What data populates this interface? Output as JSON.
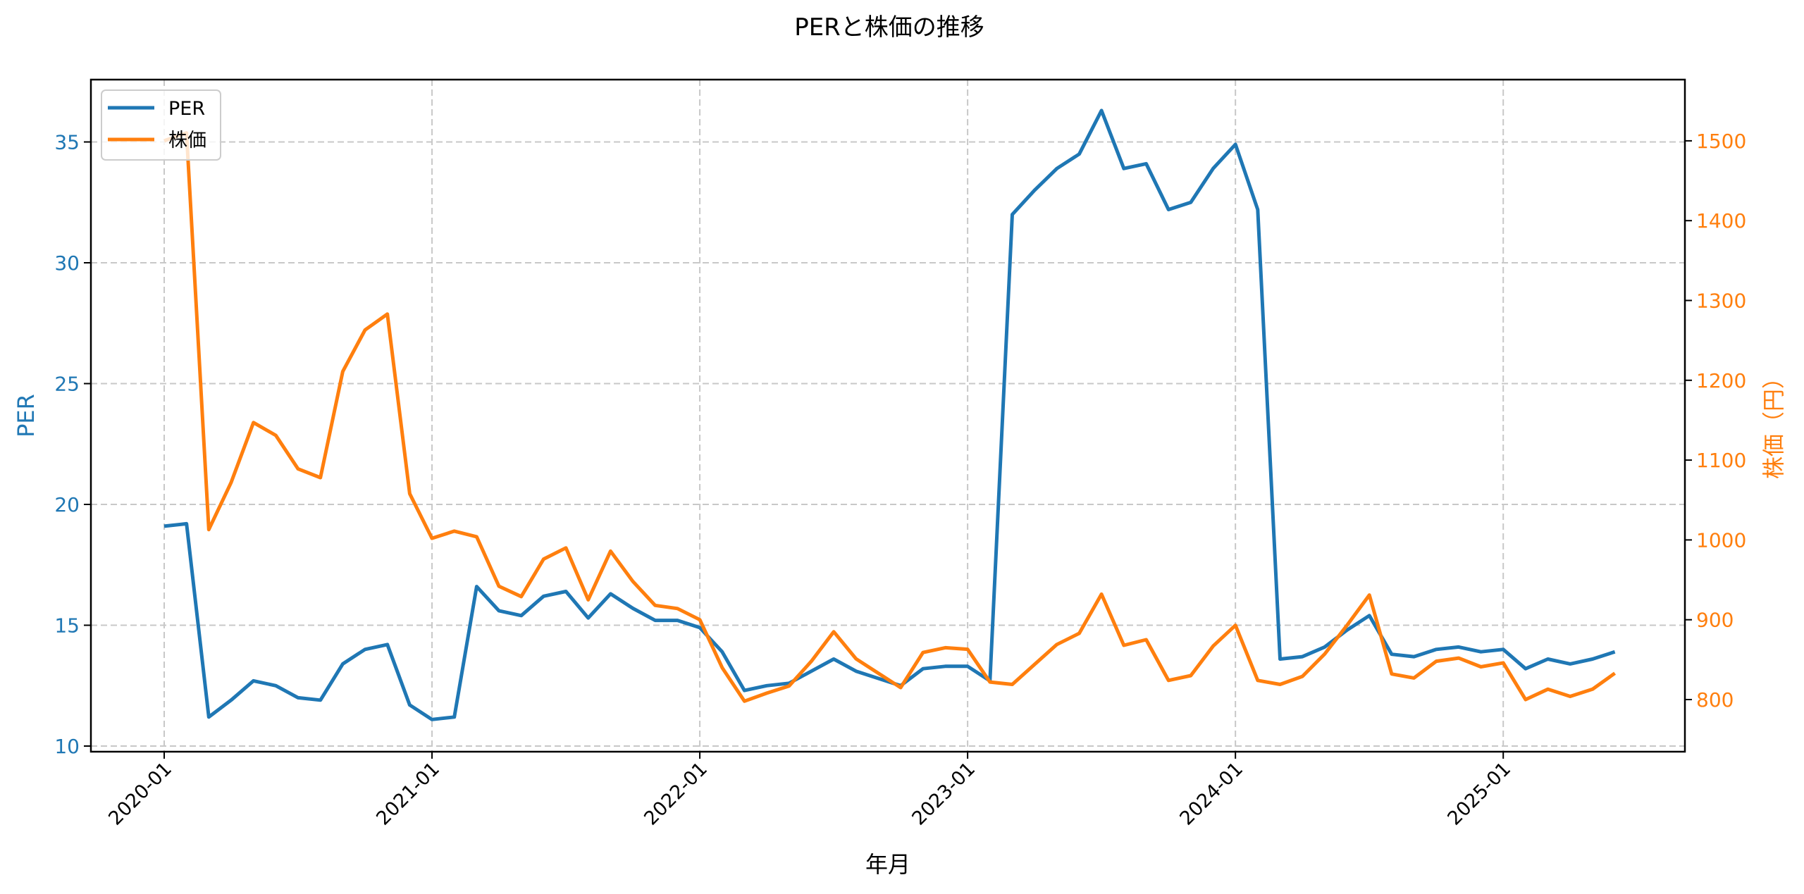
{
  "chart_data": {
    "type": "line",
    "title": "PERと株価の推移",
    "xlabel": "年月",
    "ylabel": "PER",
    "ylabel_right": "株価（円）",
    "grid": true,
    "legend_position": "upper left",
    "x_tick_labels": [
      "2020-01",
      "2021-01",
      "2022-01",
      "2023-01",
      "2024-01",
      "2025-01"
    ],
    "y_left_ticks": [
      10,
      15,
      20,
      25,
      30,
      35
    ],
    "y_right_ticks": [
      800,
      900,
      1000,
      1100,
      1200,
      1300,
      1400,
      1500
    ],
    "ylim_left": [
      9.7,
      37.6
    ],
    "ylim_right": [
      726,
      1576
    ],
    "x": [
      "2020-01",
      "2020-02",
      "2020-03",
      "2020-04",
      "2020-05",
      "2020-06",
      "2020-07",
      "2020-08",
      "2020-09",
      "2020-10",
      "2020-11",
      "2020-12",
      "2021-01",
      "2021-02",
      "2021-03",
      "2021-04",
      "2021-05",
      "2021-06",
      "2021-07",
      "2021-08",
      "2021-09",
      "2021-10",
      "2021-11",
      "2021-12",
      "2022-01",
      "2022-02",
      "2022-03",
      "2022-04",
      "2022-05",
      "2022-06",
      "2022-07",
      "2022-08",
      "2022-09",
      "2022-10",
      "2022-11",
      "2022-12",
      "2023-01",
      "2023-02",
      "2023-03",
      "2023-04",
      "2023-05",
      "2023-06",
      "2023-07",
      "2023-08",
      "2023-09",
      "2023-10",
      "2023-11",
      "2023-12",
      "2024-01",
      "2024-02",
      "2024-03",
      "2024-04",
      "2024-05",
      "2024-06",
      "2024-07",
      "2024-08",
      "2024-09",
      "2024-10",
      "2024-11",
      "2024-12",
      "2025-01",
      "2025-02",
      "2025-03",
      "2025-04",
      "2025-05",
      "2025-06"
    ],
    "series": [
      {
        "name": "PER",
        "axis": "left",
        "color": "#1f77b4",
        "values": [
          19.1,
          19.2,
          11.2,
          11.9,
          12.7,
          12.5,
          12.0,
          11.9,
          13.4,
          14.0,
          14.2,
          11.7,
          11.1,
          11.2,
          16.6,
          15.6,
          15.4,
          16.2,
          16.4,
          15.3,
          16.3,
          15.7,
          15.2,
          15.2,
          14.9,
          13.9,
          12.3,
          12.5,
          12.6,
          13.1,
          13.6,
          13.1,
          12.8,
          12.5,
          13.2,
          13.3,
          13.3,
          12.7,
          32.0,
          33.0,
          33.9,
          34.5,
          36.3,
          33.9,
          34.1,
          32.2,
          32.5,
          33.9,
          34.9,
          32.2,
          13.6,
          13.7,
          14.1,
          14.8,
          15.4,
          13.8,
          13.7,
          14.0,
          14.1,
          13.9,
          14.0,
          13.2,
          13.6,
          13.4,
          13.6,
          13.9
        ]
      },
      {
        "name": "株価",
        "axis": "right",
        "color": "#ff7f0e",
        "values": [
          1500,
          1510,
          1013,
          1072,
          1147,
          1131,
          1089,
          1078,
          1211,
          1263,
          1283,
          1058,
          1002,
          1011,
          1004,
          942,
          929,
          976,
          990,
          925,
          986,
          948,
          918,
          914,
          900,
          840,
          798,
          808,
          817,
          848,
          885,
          851,
          833,
          815,
          859,
          865,
          863,
          822,
          819,
          844,
          869,
          883,
          932,
          868,
          875,
          824,
          830,
          867,
          893,
          824,
          819,
          829,
          857,
          893,
          931,
          832,
          827,
          848,
          852,
          841,
          846,
          800,
          813,
          804,
          813,
          833
        ]
      }
    ]
  },
  "legend": {
    "items": [
      {
        "label": "PER",
        "color": "#1f77b4"
      },
      {
        "label": "株価",
        "color": "#ff7f0e"
      }
    ]
  }
}
